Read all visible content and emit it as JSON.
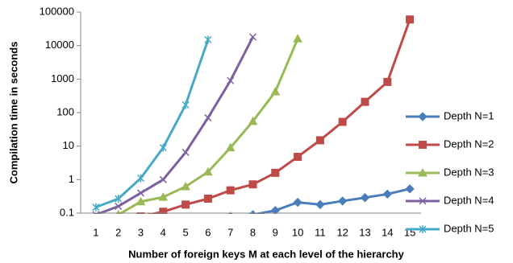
{
  "chart_data": {
    "type": "line",
    "x_label": "Number of foreign keys M at each level of the hierarchy",
    "y_label": "Compilation time in seconds",
    "categories": [
      "1",
      "2",
      "3",
      "4",
      "5",
      "6",
      "7",
      "8",
      "9",
      "10",
      "11",
      "12",
      "13",
      "14",
      "15"
    ],
    "log_scale": true,
    "ylim": [
      0.1,
      100000
    ],
    "yticks": [
      0.1,
      1,
      10,
      100,
      1000,
      10000,
      100000
    ],
    "legend": "right",
    "series": [
      {
        "name": "Depth N=1",
        "color": "#4a7ebb",
        "marker": "diamond",
        "values": [
          null,
          null,
          null,
          null,
          null,
          null,
          0.08,
          0.09,
          0.12,
          0.21,
          0.18,
          0.23,
          0.29,
          0.37,
          0.53
        ]
      },
      {
        "name": "Depth N=2",
        "color": "#be4b48",
        "marker": "square",
        "values": [
          null,
          null,
          0.08,
          0.11,
          0.18,
          0.27,
          0.48,
          0.72,
          1.6,
          4.8,
          15,
          53,
          210,
          820,
          60000
        ]
      },
      {
        "name": "Depth N=3",
        "color": "#98b954",
        "marker": "triangle",
        "values": [
          null,
          0.09,
          0.22,
          0.3,
          0.62,
          1.7,
          9,
          55,
          420,
          16000,
          null,
          null,
          null,
          null,
          null
        ]
      },
      {
        "name": "Depth N=4",
        "color": "#7d60a0",
        "marker": "x",
        "values": [
          0.09,
          0.16,
          0.4,
          1.0,
          6.5,
          70,
          900,
          18000,
          null,
          null,
          null,
          null,
          null,
          null,
          null
        ]
      },
      {
        "name": "Depth N=5",
        "color": "#46aac5",
        "marker": "star",
        "values": [
          0.15,
          0.27,
          1.1,
          9,
          170,
          15000,
          null,
          null,
          null,
          null,
          null,
          null,
          null,
          null,
          null
        ]
      }
    ]
  }
}
